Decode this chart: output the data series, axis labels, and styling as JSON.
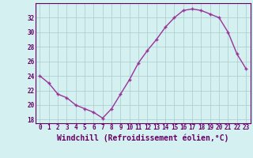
{
  "x": [
    0,
    1,
    2,
    3,
    4,
    5,
    6,
    7,
    8,
    9,
    10,
    11,
    12,
    13,
    14,
    15,
    16,
    17,
    18,
    19,
    20,
    21,
    22,
    23
  ],
  "y": [
    24.0,
    23.0,
    21.5,
    21.0,
    20.0,
    19.5,
    19.0,
    18.2,
    19.5,
    21.5,
    23.5,
    25.8,
    27.5,
    29.0,
    30.7,
    32.0,
    33.0,
    33.2,
    33.0,
    32.5,
    32.0,
    30.0,
    27.0,
    25.0
  ],
  "line_color": "#993399",
  "marker": "+",
  "marker_size": 3,
  "marker_linewidth": 1.0,
  "background_color": "#d4f0f0",
  "grid_color": "#aacccc",
  "axis_color": "#660066",
  "xlabel": "Windchill (Refroidissement éolien,°C)",
  "xlim": [
    -0.5,
    23.5
  ],
  "ylim": [
    17.5,
    34.0
  ],
  "yticks": [
    18,
    20,
    22,
    24,
    26,
    28,
    30,
    32
  ],
  "xticks": [
    0,
    1,
    2,
    3,
    4,
    5,
    6,
    7,
    8,
    9,
    10,
    11,
    12,
    13,
    14,
    15,
    16,
    17,
    18,
    19,
    20,
    21,
    22,
    23
  ],
  "tick_font_size": 5.5,
  "xlabel_font_size": 7.0,
  "line_width": 1.0
}
